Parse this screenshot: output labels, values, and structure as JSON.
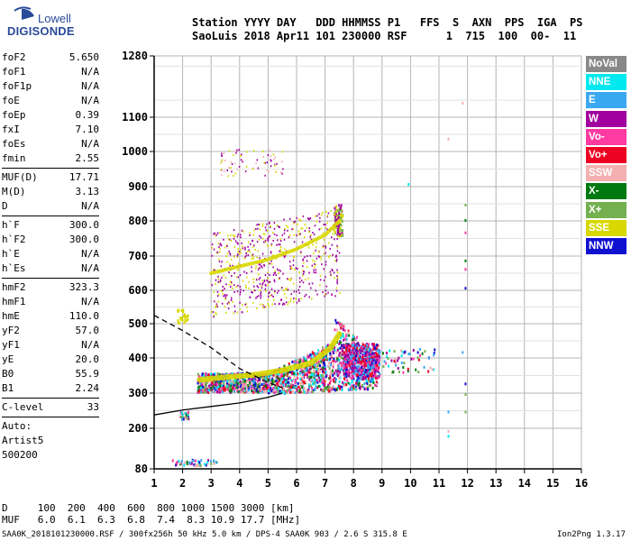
{
  "logo": {
    "line1": "Lowell",
    "line2": "DIGISONDE"
  },
  "header": {
    "line1": "Station YYYY DAY   DDD HHMMSS P1   FFS  S  AXN  PPS  IGA  PS",
    "line2": "SaoLuis 2018 Apr11 101 230000 RSF      1  715  100  00-  11"
  },
  "params": {
    "group1": [
      {
        "name": "foF2",
        "value": "5.650"
      },
      {
        "name": "foF1",
        "value": "N/A"
      },
      {
        "name": "foF1p",
        "value": "N/A"
      },
      {
        "name": "foE",
        "value": "N/A"
      },
      {
        "name": "foEp",
        "value": "0.39"
      },
      {
        "name": "fxI",
        "value": "7.10"
      },
      {
        "name": "foEs",
        "value": "N/A"
      },
      {
        "name": "fmin",
        "value": "2.55"
      }
    ],
    "group2": [
      {
        "name": "MUF(D)",
        "value": "17.71"
      },
      {
        "name": "M(D)",
        "value": "3.13"
      },
      {
        "name": "D",
        "value": "N/A"
      }
    ],
    "group3": [
      {
        "name": "h`F",
        "value": "300.0"
      },
      {
        "name": "h`F2",
        "value": "300.0"
      },
      {
        "name": "h`E",
        "value": "N/A"
      },
      {
        "name": "h`Es",
        "value": "N/A"
      }
    ],
    "group4": [
      {
        "name": "hmF2",
        "value": "323.3"
      },
      {
        "name": "hmF1",
        "value": "N/A"
      },
      {
        "name": "hmE",
        "value": "110.0"
      },
      {
        "name": "yF2",
        "value": "57.0"
      },
      {
        "name": "yF1",
        "value": "N/A"
      },
      {
        "name": "yE",
        "value": "20.0"
      },
      {
        "name": "B0",
        "value": "55.9"
      },
      {
        "name": "B1",
        "value": "2.24"
      }
    ],
    "clevel": {
      "name": "C-level",
      "value": "33"
    },
    "auto": [
      "Auto:",
      "Artist5",
      "500200"
    ]
  },
  "legend": [
    {
      "label": "NoVal",
      "color": "#888888"
    },
    {
      "label": "NNE",
      "color": "#00e8f0"
    },
    {
      "label": "E",
      "color": "#3aa8f0"
    },
    {
      "label": "W",
      "color": "#a0009e"
    },
    {
      "label": "Vo-",
      "color": "#ff3aa0"
    },
    {
      "label": "Vo+",
      "color": "#ee0022"
    },
    {
      "label": "SSW",
      "color": "#f4b0b0"
    },
    {
      "label": "X-",
      "color": "#007a10"
    },
    {
      "label": "X+",
      "color": "#74b050"
    },
    {
      "label": "SSE",
      "color": "#d8d800"
    },
    {
      "label": "NNW",
      "color": "#1010d0"
    }
  ],
  "footer": {
    "dline": "D     100  200  400  600  800 1000 1500 3000 [km]",
    "mline": "MUF   6.0  6.1  6.3  6.8  7.4  8.3 10.9 17.7 [MHz]",
    "file": "SAA0K_2018101230000.RSF / 300fx256h 50 kHz 5.0 km / DPS-4 SAA0K 903 / 2.6 S 315.8 E",
    "version": "Ion2Png 1.3.17"
  },
  "chart_data": {
    "type": "scatter",
    "title": "",
    "xlabel": "",
    "ylabel": "",
    "xlim": [
      1,
      16
    ],
    "ylim": [
      80,
      1280
    ],
    "x_ticks": [
      1,
      2,
      3,
      4,
      5,
      6,
      7,
      8,
      9,
      10,
      11,
      12,
      13,
      14,
      15,
      16
    ],
    "y_ticks": [
      80,
      200,
      300,
      400,
      500,
      600,
      700,
      800,
      900,
      1000,
      1100,
      1280
    ],
    "grid": true,
    "legend_position": "right",
    "trace_F2_SSE": {
      "x": [
        2.6,
        3.5,
        4.5,
        5.5,
        6.5,
        7.2,
        7.5
      ],
      "y": [
        338,
        345,
        352,
        365,
        385,
        430,
        470
      ]
    },
    "trace_F2_upper_SSE": {
      "x": [
        3.0,
        4.0,
        5.0,
        6.0,
        7.0,
        7.5
      ],
      "y": [
        650,
        670,
        690,
        720,
        760,
        800
      ]
    },
    "profile_solid": {
      "x": [
        1.0,
        2.0,
        3.0,
        4.0,
        5.0,
        5.5
      ],
      "y": [
        238,
        252,
        262,
        272,
        288,
        300
      ]
    },
    "profile_dashed": {
      "x": [
        1.0,
        2.0,
        3.0,
        4.0,
        5.0,
        5.5
      ],
      "y": [
        525,
        480,
        430,
        370,
        330,
        315
      ]
    }
  }
}
